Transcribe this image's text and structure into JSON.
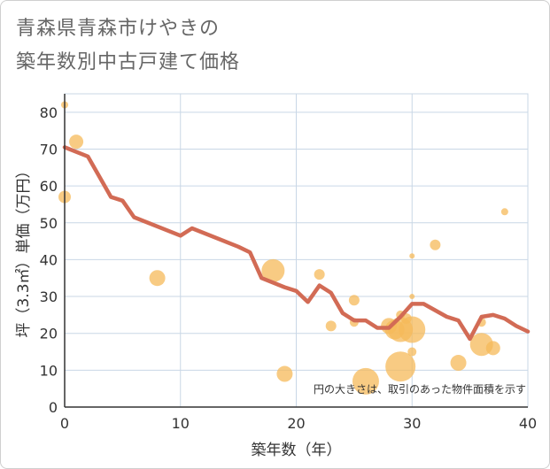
{
  "title_line1": "青森県青森市けやきの",
  "title_line2": "築年数別中古戸建て価格",
  "chart_data": {
    "type": "scatter",
    "xlabel": "築年数（年）",
    "ylabel": "坪（3.3㎡）単価（万円）",
    "xlim": [
      0,
      40
    ],
    "ylim": [
      0,
      85
    ],
    "xticks": [
      0,
      10,
      20,
      30,
      40
    ],
    "yticks": [
      0,
      10,
      20,
      30,
      40,
      50,
      60,
      70,
      80
    ],
    "grid": true,
    "note": "円の大きさは、取引のあった物件面積を示す",
    "colors": {
      "bubble": "#f5b95a",
      "line": "#d26b55",
      "grid": "#c9d7e6"
    },
    "scatter": [
      {
        "x": 0,
        "y": 82,
        "size": 4
      },
      {
        "x": 0,
        "y": 57,
        "size": 7
      },
      {
        "x": 1,
        "y": 72,
        "size": 8
      },
      {
        "x": 8,
        "y": 35,
        "size": 9
      },
      {
        "x": 18,
        "y": 37,
        "size": 13
      },
      {
        "x": 19,
        "y": 9,
        "size": 9
      },
      {
        "x": 22,
        "y": 36,
        "size": 6
      },
      {
        "x": 23,
        "y": 22,
        "size": 6
      },
      {
        "x": 25,
        "y": 29,
        "size": 6
      },
      {
        "x": 25,
        "y": 23,
        "size": 5
      },
      {
        "x": 26,
        "y": 7,
        "size": 15
      },
      {
        "x": 28,
        "y": 22,
        "size": 9
      },
      {
        "x": 28.5,
        "y": 21,
        "size": 11
      },
      {
        "x": 29,
        "y": 21,
        "size": 14
      },
      {
        "x": 29,
        "y": 11,
        "size": 17
      },
      {
        "x": 29,
        "y": 25,
        "size": 5
      },
      {
        "x": 29.5,
        "y": 24,
        "size": 6
      },
      {
        "x": 30,
        "y": 21,
        "size": 15
      },
      {
        "x": 30,
        "y": 15,
        "size": 5
      },
      {
        "x": 30,
        "y": 30,
        "size": 3
      },
      {
        "x": 30,
        "y": 41,
        "size": 3
      },
      {
        "x": 32,
        "y": 44,
        "size": 6
      },
      {
        "x": 34,
        "y": 12,
        "size": 9
      },
      {
        "x": 36,
        "y": 17,
        "size": 13
      },
      {
        "x": 36,
        "y": 23,
        "size": 5
      },
      {
        "x": 37,
        "y": 16,
        "size": 8
      },
      {
        "x": 38,
        "y": 53,
        "size": 4
      }
    ],
    "trend": [
      {
        "x": 0,
        "y": 70.5
      },
      {
        "x": 2,
        "y": 68
      },
      {
        "x": 4,
        "y": 57
      },
      {
        "x": 5,
        "y": 56
      },
      {
        "x": 6,
        "y": 51.5
      },
      {
        "x": 10,
        "y": 46.5
      },
      {
        "x": 11,
        "y": 48.5
      },
      {
        "x": 15,
        "y": 43.5
      },
      {
        "x": 16,
        "y": 42
      },
      {
        "x": 17,
        "y": 35
      },
      {
        "x": 19,
        "y": 32.5
      },
      {
        "x": 20,
        "y": 31.5
      },
      {
        "x": 21,
        "y": 28.5
      },
      {
        "x": 22,
        "y": 33
      },
      {
        "x": 23,
        "y": 31
      },
      {
        "x": 24,
        "y": 25.5
      },
      {
        "x": 25,
        "y": 23.5
      },
      {
        "x": 26,
        "y": 23.5
      },
      {
        "x": 27,
        "y": 21.5
      },
      {
        "x": 28,
        "y": 21.5
      },
      {
        "x": 29,
        "y": 24.5
      },
      {
        "x": 30,
        "y": 28
      },
      {
        "x": 31,
        "y": 28
      },
      {
        "x": 33,
        "y": 24.5
      },
      {
        "x": 34,
        "y": 23.5
      },
      {
        "x": 35,
        "y": 18.5
      },
      {
        "x": 36,
        "y": 24.5
      },
      {
        "x": 37,
        "y": 25
      },
      {
        "x": 38,
        "y": 24
      },
      {
        "x": 39,
        "y": 22
      },
      {
        "x": 40,
        "y": 20.5
      }
    ]
  }
}
